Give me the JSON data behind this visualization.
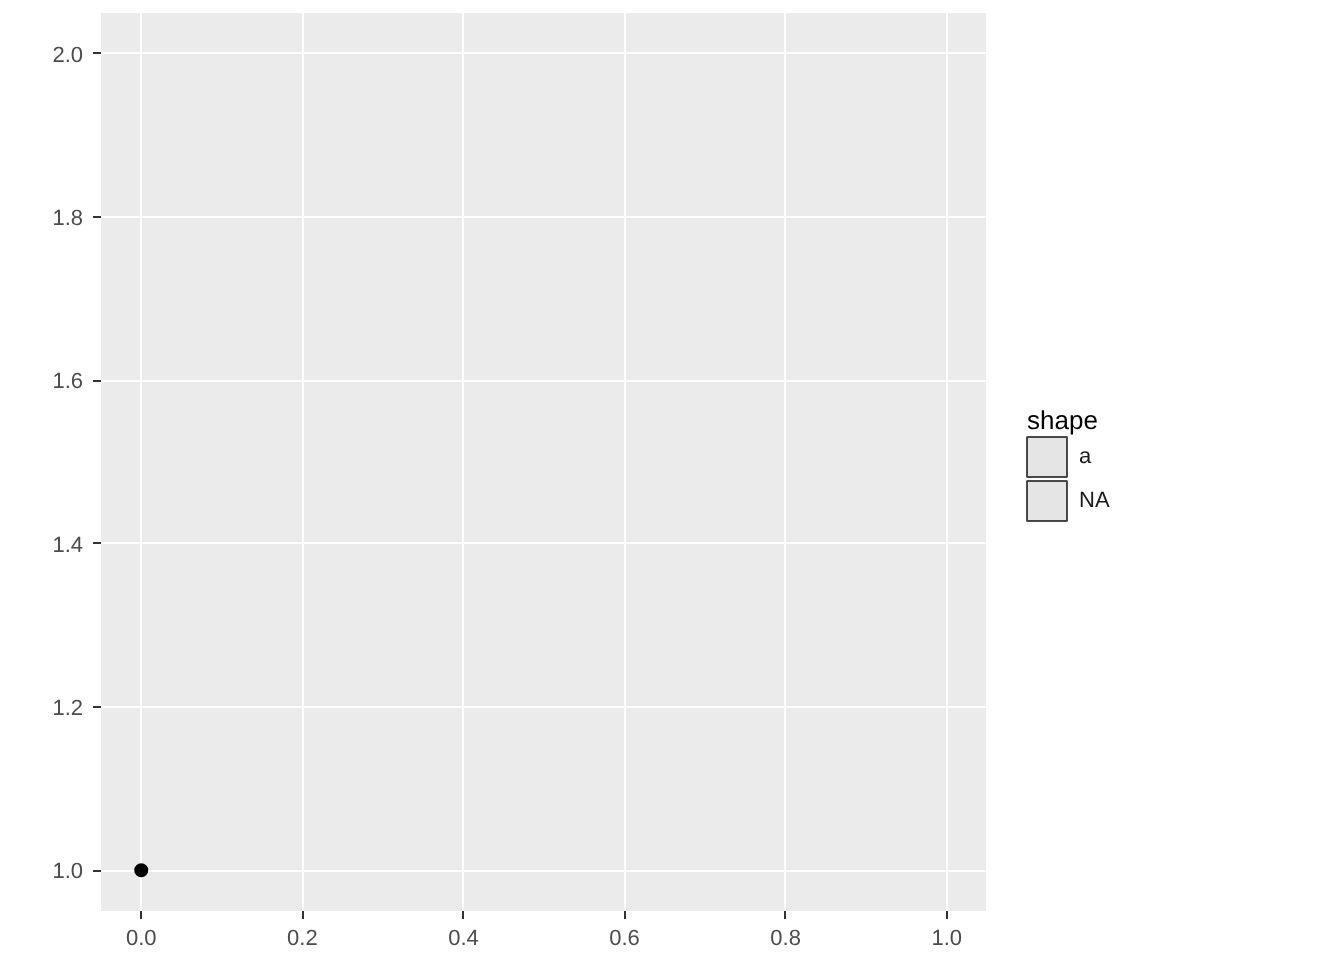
{
  "chart_data": {
    "type": "scatter",
    "legend_title": "shape",
    "legend": "right",
    "grid": true,
    "marker": "circle",
    "xlim": [
      -0.05,
      1.05
    ],
    "ylim": [
      0.95,
      2.05
    ],
    "xticks": [
      {
        "value": 0,
        "label": "0.0"
      },
      {
        "value": 0.2,
        "label": "0.2"
      },
      {
        "value": 0.4,
        "label": "0.4"
      },
      {
        "value": 0.6,
        "label": "0.6"
      },
      {
        "value": 0.8,
        "label": "0.8"
      },
      {
        "value": 1,
        "label": "1.0"
      }
    ],
    "yticks": [
      {
        "value": 1,
        "label": "1.0"
      },
      {
        "value": 1.2,
        "label": "1.2"
      },
      {
        "value": 1.4,
        "label": "1.4"
      },
      {
        "value": 1.6,
        "label": "1.6"
      },
      {
        "value": 1.8,
        "label": "1.8"
      },
      {
        "value": 2,
        "label": "2.0"
      }
    ],
    "series": [
      {
        "name": "a",
        "color": "#000000",
        "x": [
          0
        ],
        "values": [
          1
        ]
      },
      {
        "name": "NA",
        "color": "#000000"
      }
    ]
  }
}
